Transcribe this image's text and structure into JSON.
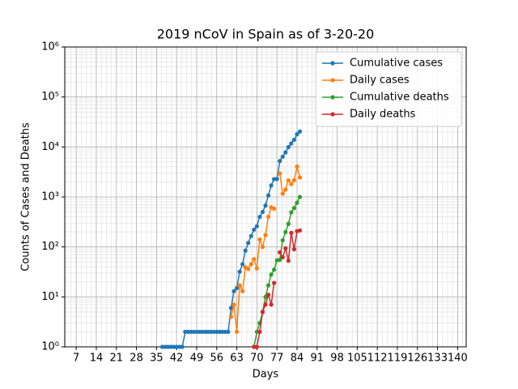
{
  "chart_data": {
    "type": "line",
    "title": "2019 nCoV in Spain as of 3-20-20",
    "x_label": "Days",
    "y_label": "Counts of Cases and Deaths",
    "log_y": true,
    "grid": true,
    "legend": "upper right",
    "xlim": [
      3,
      143
    ],
    "xticks": [
      7,
      14,
      21,
      28,
      35,
      42,
      49,
      56,
      63,
      70,
      77,
      84,
      91,
      98,
      105,
      112,
      119,
      126,
      133,
      140
    ],
    "ylim": [
      1,
      1000000
    ],
    "yticks": [
      {
        "value": 1,
        "label": "10⁰"
      },
      {
        "value": 10,
        "label": "10¹"
      },
      {
        "value": 100,
        "label": "10²"
      },
      {
        "value": 1000,
        "label": "10³"
      },
      {
        "value": 10000,
        "label": "10⁴"
      },
      {
        "value": 100000,
        "label": "10⁵"
      },
      {
        "value": 1000000,
        "label": "10⁶"
      }
    ],
    "x": [
      37,
      38,
      39,
      40,
      41,
      42,
      43,
      44,
      45,
      46,
      47,
      48,
      49,
      50,
      51,
      52,
      53,
      54,
      55,
      56,
      57,
      58,
      59,
      60,
      61,
      62,
      63,
      64,
      65,
      66,
      67,
      68,
      69,
      70,
      71,
      72,
      73,
      74,
      75,
      76,
      77,
      78,
      79,
      80,
      81,
      82,
      83,
      84,
      85
    ],
    "series": [
      {
        "name": "Cumulative cases",
        "color": "#1f77b4",
        "values": [
          1,
          1,
          1,
          1,
          1,
          1,
          1,
          1,
          2,
          2,
          2,
          2,
          2,
          2,
          2,
          2,
          2,
          2,
          2,
          2,
          2,
          2,
          2,
          2,
          6,
          13,
          15,
          32,
          45,
          84,
          120,
          165,
          222,
          259,
          400,
          500,
          673,
          1073,
          1695,
          2277,
          2277,
          5232,
          6391,
          7798,
          9942,
          11748,
          13910,
          17963,
          20410
        ]
      },
      {
        "name": "Daily cases",
        "color": "#ff7f0e",
        "values": [
          null,
          null,
          null,
          null,
          null,
          null,
          null,
          null,
          null,
          null,
          null,
          null,
          null,
          null,
          null,
          null,
          null,
          null,
          null,
          null,
          null,
          null,
          null,
          null,
          4,
          7,
          2,
          17,
          13,
          39,
          36,
          45,
          57,
          37,
          141,
          100,
          173,
          400,
          622,
          582,
          null,
          2955,
          1159,
          1407,
          2144,
          1806,
          2162,
          4053,
          2447
        ]
      },
      {
        "name": "Cumulative deaths",
        "color": "#2ca02c",
        "values": [
          null,
          null,
          null,
          null,
          null,
          null,
          null,
          null,
          null,
          null,
          null,
          null,
          null,
          null,
          null,
          null,
          null,
          null,
          null,
          null,
          null,
          null,
          null,
          null,
          null,
          null,
          null,
          null,
          null,
          null,
          null,
          null,
          1,
          2,
          3,
          5,
          10,
          17,
          28,
          35,
          54,
          55,
          136,
          198,
          289,
          491,
          598,
          767,
          1002
        ]
      },
      {
        "name": "Daily deaths",
        "color": "#d62728",
        "values": [
          null,
          null,
          null,
          null,
          null,
          null,
          null,
          null,
          null,
          null,
          null,
          null,
          null,
          null,
          null,
          null,
          null,
          null,
          null,
          null,
          null,
          null,
          null,
          null,
          null,
          null,
          null,
          null,
          null,
          null,
          null,
          null,
          1,
          1,
          2,
          5,
          7,
          11,
          7,
          19,
          null,
          78,
          62,
          94,
          53,
          191,
          90,
          207,
          213
        ]
      }
    ]
  }
}
